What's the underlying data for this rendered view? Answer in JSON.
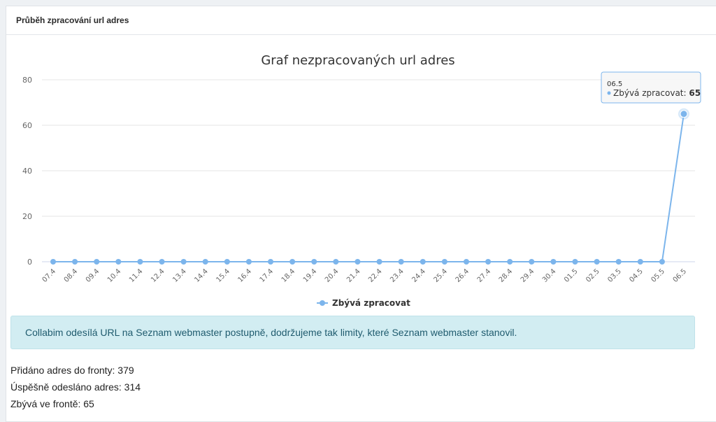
{
  "panel": {
    "title": "Průběh zpracování url adres"
  },
  "chart_data": {
    "type": "line",
    "title": "Graf nezpracovaných url adres",
    "xlabel": "",
    "ylabel": "",
    "ylim": [
      0,
      80
    ],
    "yticks": [
      0,
      20,
      40,
      60,
      80
    ],
    "categories": [
      "07.4",
      "08.4",
      "09.4",
      "10.4",
      "11.4",
      "12.4",
      "13.4",
      "14.4",
      "15.4",
      "16.4",
      "17.4",
      "18.4",
      "19.4",
      "20.4",
      "21.4",
      "22.4",
      "23.4",
      "24.4",
      "25.4",
      "26.4",
      "27.4",
      "28.4",
      "29.4",
      "30.4",
      "01.5",
      "02.5",
      "03.5",
      "04.5",
      "05.5",
      "06.5"
    ],
    "series": [
      {
        "name": "Zbývá zpracovat",
        "color": "#7cb5ec",
        "values": [
          0,
          0,
          0,
          0,
          0,
          0,
          0,
          0,
          0,
          0,
          0,
          0,
          0,
          0,
          0,
          0,
          0,
          0,
          0,
          0,
          0,
          0,
          0,
          0,
          0,
          0,
          0,
          0,
          0,
          65
        ]
      }
    ],
    "grid": true,
    "legend": "bottom-center",
    "tooltip": {
      "category": "06.5",
      "series_label": "Zbývá zpracovat:",
      "value": "65"
    }
  },
  "alert": {
    "text": "Collabim odesílá URL na Seznam webmaster postupně, dodržujeme tak limity, které Seznam webmaster stanovil."
  },
  "stats": {
    "added": "Přidáno adres do fronty: 379",
    "sent": "Úspěšně odesláno adres: 314",
    "remaining": "Zbývá ve frontě: 65"
  }
}
